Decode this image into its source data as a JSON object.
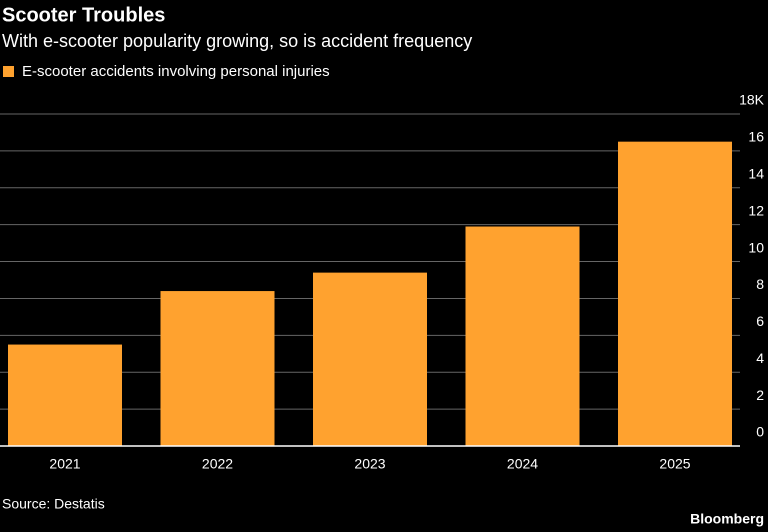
{
  "chart_data": {
    "type": "bar",
    "title": "Scooter Troubles",
    "subtitle": "With e-scooter popularity growing, so is accident frequency",
    "categories": [
      "2021",
      "2022",
      "2023",
      "2024",
      "2025"
    ],
    "series": [
      {
        "name": "E-scooter accidents involving personal injuries",
        "color": "#ffa22f",
        "values": [
          5.5,
          8.4,
          9.4,
          11.9,
          16.5
        ]
      }
    ],
    "ylim": [
      0,
      18
    ],
    "yticks": [
      0,
      2,
      4,
      6,
      8,
      10,
      12,
      14,
      16,
      {
        "value": 18,
        "label": "18K"
      }
    ],
    "grid": true,
    "source": "Source: Destatis",
    "credit": "Bloomberg"
  }
}
